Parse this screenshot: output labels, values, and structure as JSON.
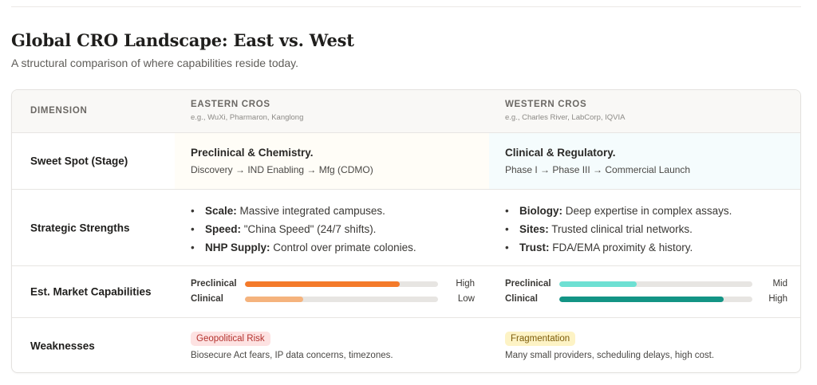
{
  "header": {
    "title": "Global CRO Landscape: East vs. West",
    "subtitle": "A structural comparison of where capabilities reside today."
  },
  "table": {
    "dimension_header": "DIMENSION",
    "columns": [
      {
        "label": "EASTERN CROS",
        "examples": "e.g., WuXi, Pharmaron, Kanglong"
      },
      {
        "label": "WESTERN CROS",
        "examples": "e.g., Charles River, LabCorp, IQVIA"
      }
    ],
    "rows": {
      "sweet_spot": {
        "label": "Sweet Spot (Stage)",
        "east": {
          "title": "Preclinical & Chemistry.",
          "desc": "Discovery → IND Enabling → Mfg (CDMO)"
        },
        "west": {
          "title": "Clinical & Regulatory.",
          "desc": "Phase I → Phase III → Commercial Launch"
        }
      },
      "strengths": {
        "label": "Strategic Strengths",
        "east": [
          {
            "term": "Scale:",
            "text": " Massive integrated campuses."
          },
          {
            "term": "Speed:",
            "text": " \"China Speed\" (24/7 shifts)."
          },
          {
            "term": "NHP Supply:",
            "text": " Control over primate colonies."
          }
        ],
        "west": [
          {
            "term": "Biology:",
            "text": " Deep expertise in complex assays."
          },
          {
            "term": "Sites:",
            "text": " Trusted clinical trial networks."
          },
          {
            "term": "Trust:",
            "text": " FDA/EMA proximity & history."
          }
        ]
      },
      "market": {
        "label": "Est. Market Capabilities",
        "east": [
          {
            "name": "Preclinical",
            "level": "High",
            "fill": 0.8,
            "color": "#f47a2a"
          },
          {
            "name": "Clinical",
            "level": "Low",
            "fill": 0.3,
            "color": "#f5b37d"
          }
        ],
        "west": [
          {
            "name": "Preclinical",
            "level": "Mid",
            "fill": 0.4,
            "color": "#6ee0d3"
          },
          {
            "name": "Clinical",
            "level": "High",
            "fill": 0.85,
            "color": "#139485"
          }
        ]
      },
      "weaknesses": {
        "label": "Weaknesses",
        "east": {
          "badge": "Geopolitical Risk",
          "desc": "Biosecure Act fears, IP data concerns, timezones."
        },
        "west": {
          "badge": "Fragmentation",
          "desc": "Many small providers, scheduling delays, high cost."
        }
      }
    }
  }
}
